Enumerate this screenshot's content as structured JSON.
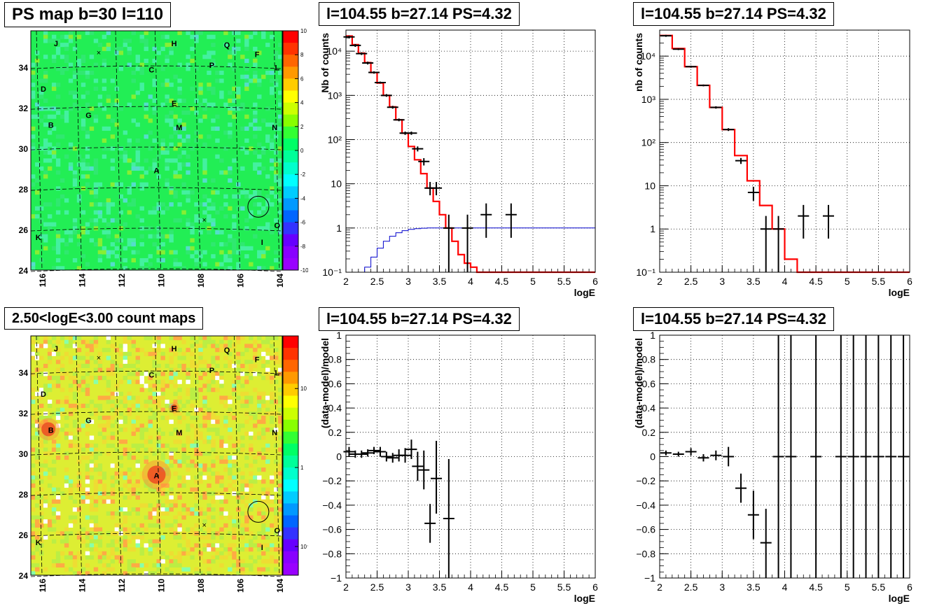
{
  "panels": {
    "ps_map": {
      "title": "PS map b=30 l=110",
      "x_ticks": [
        "116",
        "114",
        "112",
        "110",
        "108",
        "106",
        "104"
      ],
      "y_ticks": [
        "24",
        "26",
        "28",
        "30",
        "32",
        "34"
      ],
      "colorbar_ticks": [
        "10",
        "8",
        "6",
        "4",
        "2",
        "0",
        "-2",
        "-4",
        "-6",
        "-8",
        "-10"
      ]
    },
    "count_map": {
      "title": "2.50<logE<3.00 count maps",
      "x_ticks": [
        "116",
        "114",
        "112",
        "110",
        "108",
        "106",
        "104"
      ],
      "y_ticks": [
        "24",
        "26",
        "28",
        "30",
        "32",
        "34"
      ],
      "colorbar_ticks": [
        "10",
        "1",
        "10⁻¹"
      ]
    },
    "spec1": {
      "title": "l=104.55 b=27.14 PS=4.32"
    },
    "spec2": {
      "title": "l=104.55 b=27.14 PS=4.32"
    },
    "res1": {
      "title": "l=104.55 b=27.14 PS=4.32"
    },
    "res2": {
      "title": "l=104.55 b=27.14 PS=4.32"
    }
  },
  "source_labels": [
    "J",
    "H",
    "Q",
    "F",
    "C",
    "P",
    "L",
    "D",
    "E",
    "G",
    "B",
    "N",
    "M",
    "A",
    "O",
    "K",
    "I"
  ],
  "colors": {
    "model_line": "#ff0000",
    "efficiency_line": "#0000cc",
    "data": "#000000",
    "psmap_bg": "#22ee55",
    "countmap_bg": "#ddee33"
  },
  "chart_data": [
    {
      "type": "line",
      "panel": "spec1",
      "xlabel": "logE",
      "ylabel": "Nb of counts",
      "xlim": [
        2,
        6
      ],
      "ylim": [
        0.1,
        30000
      ],
      "log_y": true,
      "grid": true,
      "x_ticks": [
        "2",
        "2.5",
        "3",
        "3.5",
        "4",
        "4.5",
        "5",
        "5.5",
        "6"
      ],
      "y_ticks": [
        "10⁻¹",
        "1",
        "10",
        "10²",
        "10³",
        "10⁴"
      ],
      "series": [
        {
          "role": "model_step",
          "edges": [
            2,
            2.1,
            2.2,
            2.3,
            2.4,
            2.5,
            2.6,
            2.7,
            2.8,
            2.9,
            3,
            3.1,
            3.2,
            3.3,
            3.4,
            3.5,
            3.6,
            3.7,
            3.8,
            3.9,
            4,
            4.1,
            4.2,
            6
          ],
          "values": [
            22000,
            14000,
            9000,
            5500,
            3300,
            1900,
            1000,
            550,
            280,
            140,
            70,
            35,
            17,
            8,
            4,
            2,
            1,
            0.5,
            0.25,
            0.16,
            0.13,
            0.1,
            0.1
          ]
        },
        {
          "role": "efficiency_step",
          "edges": [
            2,
            2.3,
            2.4,
            2.5,
            2.6,
            2.7,
            2.8,
            2.9,
            3.0,
            3.1,
            3.2,
            3.3,
            6
          ],
          "values": [
            0.1,
            0.13,
            0.22,
            0.35,
            0.5,
            0.65,
            0.78,
            0.87,
            0.93,
            0.97,
            0.99,
            1.0
          ]
        },
        {
          "role": "data",
          "points": [
            {
              "x": 2.05,
              "y": 21000,
              "lo": 19500,
              "hi": 22500
            },
            {
              "x": 2.15,
              "y": 13500,
              "lo": 12500,
              "hi": 14500
            },
            {
              "x": 2.25,
              "y": 8800,
              "lo": 8200,
              "hi": 9400
            },
            {
              "x": 2.35,
              "y": 5400,
              "lo": 5000,
              "hi": 5800
            },
            {
              "x": 2.45,
              "y": 3300,
              "lo": 3100,
              "hi": 3500
            },
            {
              "x": 2.55,
              "y": 1950,
              "lo": 1850,
              "hi": 2050
            },
            {
              "x": 2.65,
              "y": 1000,
              "lo": 930,
              "hi": 1070
            },
            {
              "x": 2.75,
              "y": 540,
              "lo": 500,
              "hi": 580
            },
            {
              "x": 2.85,
              "y": 280,
              "lo": 260,
              "hi": 300
            },
            {
              "x": 2.95,
              "y": 140,
              "lo": 128,
              "hi": 152
            },
            {
              "x": 3.05,
              "y": 140,
              "lo": 128,
              "hi": 152
            },
            {
              "x": 3.15,
              "y": 62,
              "lo": 54,
              "hi": 70
            },
            {
              "x": 3.25,
              "y": 32,
              "lo": 26,
              "hi": 38
            },
            {
              "x": 3.35,
              "y": 8,
              "lo": 5.5,
              "hi": 11
            },
            {
              "x": 3.45,
              "y": 8,
              "lo": 5.5,
              "hi": 11
            },
            {
              "x": 3.65,
              "y": 1,
              "lo": 0.1,
              "hi": 2
            },
            {
              "x": 3.95,
              "y": 1,
              "lo": 0.1,
              "hi": 2
            },
            {
              "x": 4.25,
              "y": 2,
              "lo": 0.6,
              "hi": 3.6
            },
            {
              "x": 4.65,
              "y": 2,
              "lo": 0.6,
              "hi": 3.6
            }
          ]
        }
      ]
    },
    {
      "type": "line",
      "panel": "spec2",
      "xlabel": "logE",
      "ylabel": "nb of counts",
      "xlim": [
        2,
        6
      ],
      "ylim": [
        0.1,
        40000
      ],
      "log_y": true,
      "grid": true,
      "x_ticks": [
        "2",
        "2.5",
        "3",
        "3.5",
        "4",
        "4.5",
        "5",
        "5.5",
        "6"
      ],
      "y_ticks": [
        "10⁻¹",
        "1",
        "10",
        "10²",
        "10³",
        "10⁴"
      ],
      "series": [
        {
          "role": "model_step",
          "edges": [
            2,
            2.2,
            2.4,
            2.6,
            2.8,
            3.0,
            3.2,
            3.4,
            3.6,
            3.8,
            4.0,
            4.2,
            6
          ],
          "values": [
            30000,
            15000,
            5700,
            2100,
            650,
            200,
            50,
            13,
            3.5,
            1,
            0.2,
            0.1
          ]
        },
        {
          "role": "data",
          "points": [
            {
              "x": 2.1,
              "y": 29500,
              "lo": 28000,
              "hi": 31000
            },
            {
              "x": 2.3,
              "y": 14500,
              "lo": 13800,
              "hi": 15200
            },
            {
              "x": 2.5,
              "y": 5700,
              "lo": 5400,
              "hi": 6000
            },
            {
              "x": 2.7,
              "y": 2100,
              "lo": 2000,
              "hi": 2200
            },
            {
              "x": 2.9,
              "y": 650,
              "lo": 610,
              "hi": 690
            },
            {
              "x": 3.1,
              "y": 200,
              "lo": 185,
              "hi": 215
            },
            {
              "x": 3.3,
              "y": 38,
              "lo": 32,
              "hi": 44
            },
            {
              "x": 3.5,
              "y": 7,
              "lo": 4.5,
              "hi": 9.5
            },
            {
              "x": 3.7,
              "y": 1,
              "lo": 0.1,
              "hi": 2
            },
            {
              "x": 3.9,
              "y": 1,
              "lo": 0.1,
              "hi": 2
            },
            {
              "x": 4.3,
              "y": 2,
              "lo": 0.6,
              "hi": 3.6
            },
            {
              "x": 4.7,
              "y": 2,
              "lo": 0.6,
              "hi": 3.6
            }
          ]
        }
      ]
    },
    {
      "type": "scatter",
      "panel": "res1",
      "xlabel": "logE",
      "ylabel": "(data-model)/model",
      "xlim": [
        2,
        6
      ],
      "ylim": [
        -1,
        1
      ],
      "grid": true,
      "x_ticks": [
        "2",
        "2.5",
        "3",
        "3.5",
        "4",
        "4.5",
        "5",
        "5.5",
        "6"
      ],
      "y_ticks": [
        "−1",
        "−0.8",
        "−0.6",
        "−0.4",
        "−0.2",
        "0",
        "0.2",
        "0.4",
        "0.6",
        "0.8",
        "1"
      ],
      "points": [
        {
          "x": 2.05,
          "y": 0.04,
          "lo": 0.0,
          "hi": 0.08
        },
        {
          "x": 2.15,
          "y": 0.02,
          "lo": -0.01,
          "hi": 0.05
        },
        {
          "x": 2.25,
          "y": 0.02,
          "lo": -0.01,
          "hi": 0.05
        },
        {
          "x": 2.35,
          "y": 0.03,
          "lo": 0.0,
          "hi": 0.06
        },
        {
          "x": 2.45,
          "y": 0.05,
          "lo": 0.02,
          "hi": 0.08
        },
        {
          "x": 2.55,
          "y": 0.04,
          "lo": 0.0,
          "hi": 0.08
        },
        {
          "x": 2.65,
          "y": 0.0,
          "lo": -0.04,
          "hi": 0.04
        },
        {
          "x": 2.75,
          "y": -0.01,
          "lo": -0.05,
          "hi": 0.03
        },
        {
          "x": 2.85,
          "y": 0.01,
          "lo": -0.04,
          "hi": 0.06
        },
        {
          "x": 2.95,
          "y": 0.01,
          "lo": -0.05,
          "hi": 0.07
        },
        {
          "x": 3.05,
          "y": 0.06,
          "lo": -0.02,
          "hi": 0.14
        },
        {
          "x": 3.15,
          "y": -0.08,
          "lo": -0.2,
          "hi": 0.04
        },
        {
          "x": 3.25,
          "y": -0.11,
          "lo": -0.27,
          "hi": 0.05
        },
        {
          "x": 3.35,
          "y": -0.55,
          "lo": -0.71,
          "hi": -0.39
        },
        {
          "x": 3.45,
          "y": -0.18,
          "lo": -0.47,
          "hi": 0.13
        },
        {
          "x": 3.65,
          "y": -0.51,
          "lo": -1.0,
          "hi": -0.02
        }
      ]
    },
    {
      "type": "scatter",
      "panel": "res2",
      "xlabel": "logE",
      "ylabel": "(data-model)/model",
      "xlim": [
        2,
        6
      ],
      "ylim": [
        -1,
        1
      ],
      "grid": true,
      "x_ticks": [
        "2",
        "2.5",
        "3",
        "3.5",
        "4",
        "4.5",
        "5",
        "5.5",
        "6"
      ],
      "y_ticks": [
        "−1",
        "−0.8",
        "−0.6",
        "−0.4",
        "−0.2",
        "0",
        "0.2",
        "0.4",
        "0.6",
        "0.8",
        "1"
      ],
      "points": [
        {
          "x": 2.1,
          "y": 0.03,
          "lo": 0.01,
          "hi": 0.05
        },
        {
          "x": 2.3,
          "y": 0.02,
          "lo": 0.0,
          "hi": 0.04
        },
        {
          "x": 2.5,
          "y": 0.04,
          "lo": 0.01,
          "hi": 0.07
        },
        {
          "x": 2.7,
          "y": -0.01,
          "lo": -0.04,
          "hi": 0.02
        },
        {
          "x": 2.9,
          "y": 0.01,
          "lo": -0.03,
          "hi": 0.05
        },
        {
          "x": 3.1,
          "y": 0.0,
          "lo": -0.08,
          "hi": 0.08
        },
        {
          "x": 3.3,
          "y": -0.26,
          "lo": -0.38,
          "hi": -0.14
        },
        {
          "x": 3.5,
          "y": -0.48,
          "lo": -0.68,
          "hi": -0.28
        },
        {
          "x": 3.7,
          "y": -0.71,
          "lo": -1.0,
          "hi": -0.43
        },
        {
          "x": 3.9,
          "y": 0.0,
          "lo": -1.0,
          "hi": 1.0
        },
        {
          "x": 4.1,
          "y": 0.0,
          "lo": -1.0,
          "hi": 1.0
        },
        {
          "x": 4.5,
          "y": 0.0,
          "lo": -1.0,
          "hi": 1.0
        },
        {
          "x": 4.9,
          "y": 0.0,
          "lo": -1.0,
          "hi": 1.0
        },
        {
          "x": 5.1,
          "y": 0.0,
          "lo": -1.0,
          "hi": 1.0
        },
        {
          "x": 5.3,
          "y": 0.0,
          "lo": -1.0,
          "hi": 1.0
        },
        {
          "x": 5.5,
          "y": 0.0,
          "lo": -1.0,
          "hi": 1.0
        },
        {
          "x": 5.7,
          "y": 0.0,
          "lo": -1.0,
          "hi": 1.0
        },
        {
          "x": 5.9,
          "y": 0.0,
          "lo": -1.0,
          "hi": 1.0
        }
      ]
    }
  ]
}
